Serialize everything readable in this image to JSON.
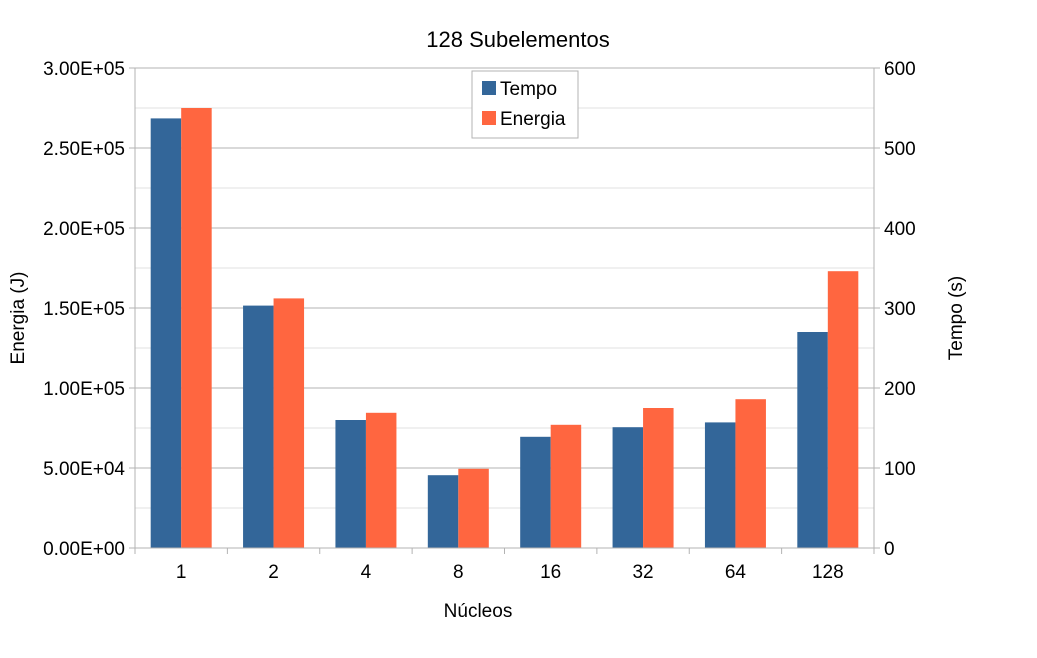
{
  "chart_data": {
    "type": "bar",
    "title": "128 Subelementos",
    "xlabel": "Núcleos",
    "ylabel_left": "Energia (J)",
    "ylabel_right": "Tempo (s)",
    "categories": [
      "1",
      "2",
      "4",
      "8",
      "16",
      "32",
      "64",
      "128"
    ],
    "y_left": {
      "min": 0,
      "max": 300000,
      "ticks": [
        0,
        50000,
        100000,
        150000,
        200000,
        250000,
        300000
      ],
      "tick_labels": [
        "0.00E+00",
        "5.00E+04",
        "1.00E+05",
        "1.50E+05",
        "2.00E+05",
        "2.50E+05",
        "3.00E+05"
      ]
    },
    "y_right": {
      "min": 0,
      "max": 600,
      "ticks": [
        0,
        100,
        200,
        300,
        400,
        500,
        600
      ],
      "tick_labels": [
        "0",
        "100",
        "200",
        "300",
        "400",
        "500",
        "600"
      ]
    },
    "grid": true,
    "legend_position": "top-center",
    "series": [
      {
        "name": "Tempo",
        "axis": "right",
        "color": "#336699",
        "values": [
          537,
          303,
          160,
          91,
          139,
          151,
          157,
          270
        ]
      },
      {
        "name": "Energia",
        "axis": "left",
        "color": "#ff6640",
        "values": [
          275000,
          156000,
          84500,
          49500,
          77000,
          87500,
          93000,
          173000
        ]
      }
    ]
  }
}
